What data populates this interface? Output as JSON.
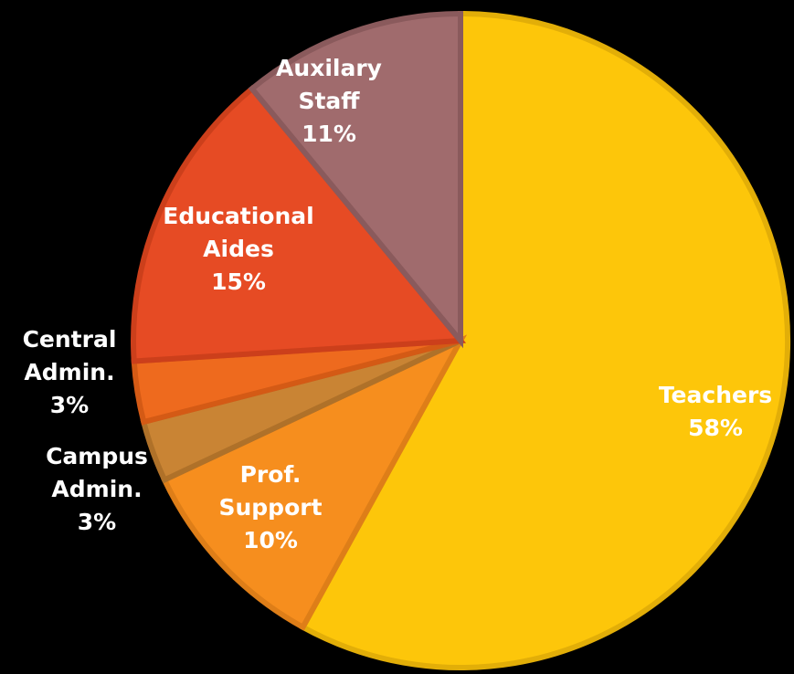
{
  "chart_data": {
    "type": "pie",
    "start_angle_deg": 0,
    "direction": "clockwise",
    "slices": [
      {
        "name": "Teachers",
        "lines": [
          "Teachers"
        ],
        "percent_label": "58%",
        "value": 58,
        "fill": "#FDC60A",
        "edge": "#E2AE08",
        "label_color": "#ffffff"
      },
      {
        "name": "Prof. Support",
        "lines": [
          "Prof.",
          "Support"
        ],
        "percent_label": "10%",
        "value": 10,
        "fill": "#F68E1E",
        "edge": "#DE7E18",
        "label_color": "#ffffff"
      },
      {
        "name": "Campus Admin.",
        "lines": [
          "Campus",
          "Admin."
        ],
        "percent_label": "3%",
        "value": 3,
        "fill": "#C98434",
        "edge": "#AF7129",
        "label_color": "#ffffff"
      },
      {
        "name": "Central Admin.",
        "lines": [
          "Central",
          "Admin."
        ],
        "percent_label": "3%",
        "value": 3,
        "fill": "#EE6A1E",
        "edge": "#D45A15",
        "label_color": "#ffffff"
      },
      {
        "name": "Educational Aides",
        "lines": [
          "Educational",
          "Aides"
        ],
        "percent_label": "15%",
        "value": 15,
        "fill": "#E64B24",
        "edge": "#CC3F1B",
        "label_color": "#ffffff"
      },
      {
        "name": "Auxilary Staff",
        "lines": [
          "Auxilary",
          "Staff"
        ],
        "percent_label": "11%",
        "value": 11,
        "fill": "#A06B6D",
        "edge": "#8A5A5C",
        "label_color": "#ffffff"
      }
    ]
  }
}
